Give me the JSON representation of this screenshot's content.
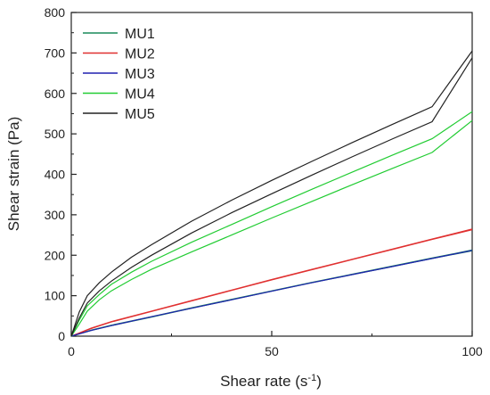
{
  "chart_data": {
    "type": "line",
    "title": "",
    "xlabel": "Shear rate (s",
    "xlabel_sup": "-1",
    "xlabel_suffix": ")",
    "ylabel": "Shear strain (Pa)",
    "xlim": [
      0,
      100
    ],
    "ylim": [
      0,
      800
    ],
    "xticks": [
      0,
      50,
      100
    ],
    "yticks": [
      0,
      100,
      200,
      300,
      400,
      500,
      600,
      700,
      800
    ],
    "grid": false,
    "legend_position": "top-left",
    "series": [
      {
        "name": "MU1",
        "color": "#1a8a5a",
        "curves": [
          [
            [
              0,
              0
            ],
            [
              5,
              15
            ],
            [
              10,
              27
            ],
            [
              20,
              48
            ],
            [
              30,
              70
            ],
            [
              40,
              91
            ],
            [
              50,
              112
            ],
            [
              60,
              133
            ],
            [
              70,
              153
            ],
            [
              80,
              173
            ],
            [
              90,
              193
            ],
            [
              100,
              213
            ]
          ],
          [
            [
              0,
              0
            ],
            [
              5,
              14
            ],
            [
              10,
              26
            ],
            [
              20,
              47
            ],
            [
              30,
              69
            ],
            [
              40,
              90
            ],
            [
              50,
              111
            ],
            [
              60,
              132
            ],
            [
              70,
              152
            ],
            [
              80,
              172
            ],
            [
              90,
              192
            ],
            [
              100,
              211
            ]
          ]
        ]
      },
      {
        "name": "MU2",
        "color": "#e03030",
        "curves": [
          [
            [
              0,
              0
            ],
            [
              5,
              20
            ],
            [
              10,
              36
            ],
            [
              20,
              62
            ],
            [
              30,
              88
            ],
            [
              40,
              114
            ],
            [
              50,
              140
            ],
            [
              60,
              165
            ],
            [
              70,
              190
            ],
            [
              80,
              215
            ],
            [
              90,
              240
            ],
            [
              100,
              265
            ]
          ],
          [
            [
              0,
              0
            ],
            [
              5,
              19
            ],
            [
              10,
              35
            ],
            [
              20,
              61
            ],
            [
              30,
              87
            ],
            [
              40,
              113
            ],
            [
              50,
              139
            ],
            [
              60,
              164
            ],
            [
              70,
              189
            ],
            [
              80,
              214
            ],
            [
              90,
              239
            ],
            [
              100,
              263
            ]
          ]
        ]
      },
      {
        "name": "MU3",
        "color": "#2020b0",
        "curves": [
          [
            [
              0,
              0
            ],
            [
              5,
              14
            ],
            [
              10,
              26
            ],
            [
              20,
              48
            ],
            [
              30,
              69
            ],
            [
              40,
              90
            ],
            [
              50,
              111
            ],
            [
              60,
              132
            ],
            [
              70,
              152
            ],
            [
              80,
              172
            ],
            [
              90,
              192
            ],
            [
              100,
              212
            ]
          ]
        ]
      },
      {
        "name": "MU4",
        "color": "#22cc33",
        "curves": [
          [
            [
              0,
              0
            ],
            [
              2,
              30
            ],
            [
              4,
              62
            ],
            [
              7,
              90
            ],
            [
              10,
              112
            ],
            [
              15,
              140
            ],
            [
              20,
              165
            ],
            [
              30,
              208
            ],
            [
              40,
              250
            ],
            [
              50,
              292
            ],
            [
              60,
              333
            ],
            [
              70,
              374
            ],
            [
              80,
              414
            ],
            [
              90,
              454
            ],
            [
              100,
              533
            ]
          ],
          [
            [
              0,
              0
            ],
            [
              2,
              40
            ],
            [
              4,
              75
            ],
            [
              7,
              103
            ],
            [
              10,
              128
            ],
            [
              15,
              158
            ],
            [
              20,
              185
            ],
            [
              30,
              232
            ],
            [
              40,
              276
            ],
            [
              50,
              320
            ],
            [
              60,
              363
            ],
            [
              70,
              405
            ],
            [
              80,
              447
            ],
            [
              90,
              488
            ],
            [
              100,
              555
            ]
          ]
        ]
      },
      {
        "name": "MU5",
        "color": "#222222",
        "curves": [
          [
            [
              0,
              0
            ],
            [
              2,
              45
            ],
            [
              4,
              82
            ],
            [
              7,
              112
            ],
            [
              10,
              136
            ],
            [
              15,
              170
            ],
            [
              20,
              200
            ],
            [
              30,
              255
            ],
            [
              40,
              305
            ],
            [
              50,
              352
            ],
            [
              60,
              398
            ],
            [
              70,
              443
            ],
            [
              80,
              487
            ],
            [
              90,
              530
            ],
            [
              100,
              688
            ]
          ],
          [
            [
              0,
              0
            ],
            [
              2,
              60
            ],
            [
              4,
              100
            ],
            [
              7,
              132
            ],
            [
              10,
              158
            ],
            [
              15,
              195
            ],
            [
              20,
              226
            ],
            [
              30,
              284
            ],
            [
              40,
              336
            ],
            [
              50,
              385
            ],
            [
              60,
              432
            ],
            [
              70,
              478
            ],
            [
              80,
              523
            ],
            [
              90,
              567
            ],
            [
              100,
              705
            ]
          ]
        ]
      }
    ]
  }
}
